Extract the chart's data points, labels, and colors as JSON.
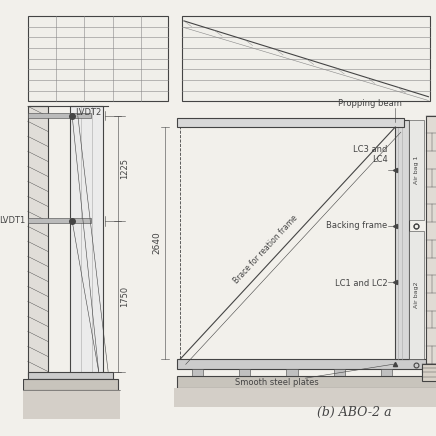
{
  "bg_color": "#f2f0eb",
  "line_color": "#444444",
  "light_line_color": "#aaaaaa",
  "med_line_color": "#888888",
  "caption": "(b) ABO-2 a",
  "caption_fontsize": 9,
  "left_panel": {
    "lvdt2_label": "LVDT2",
    "lvdt1_label": "LVDT1",
    "dim_1225": "1225",
    "dim_1750": "1750"
  },
  "right_panel": {
    "labels": {
      "propping_beam": "Propping beam",
      "brace": "Brace for reation frame",
      "lc3_lc4": "LC3 and\nLC4",
      "backing_frame": "Backing frame",
      "lc1_lc2": "LC1 and LC2",
      "smooth_plates": "Smooth steel plates",
      "airbag1": "Air bag 1",
      "airbag2": "Air bag2",
      "dim_2640": "2640"
    }
  }
}
